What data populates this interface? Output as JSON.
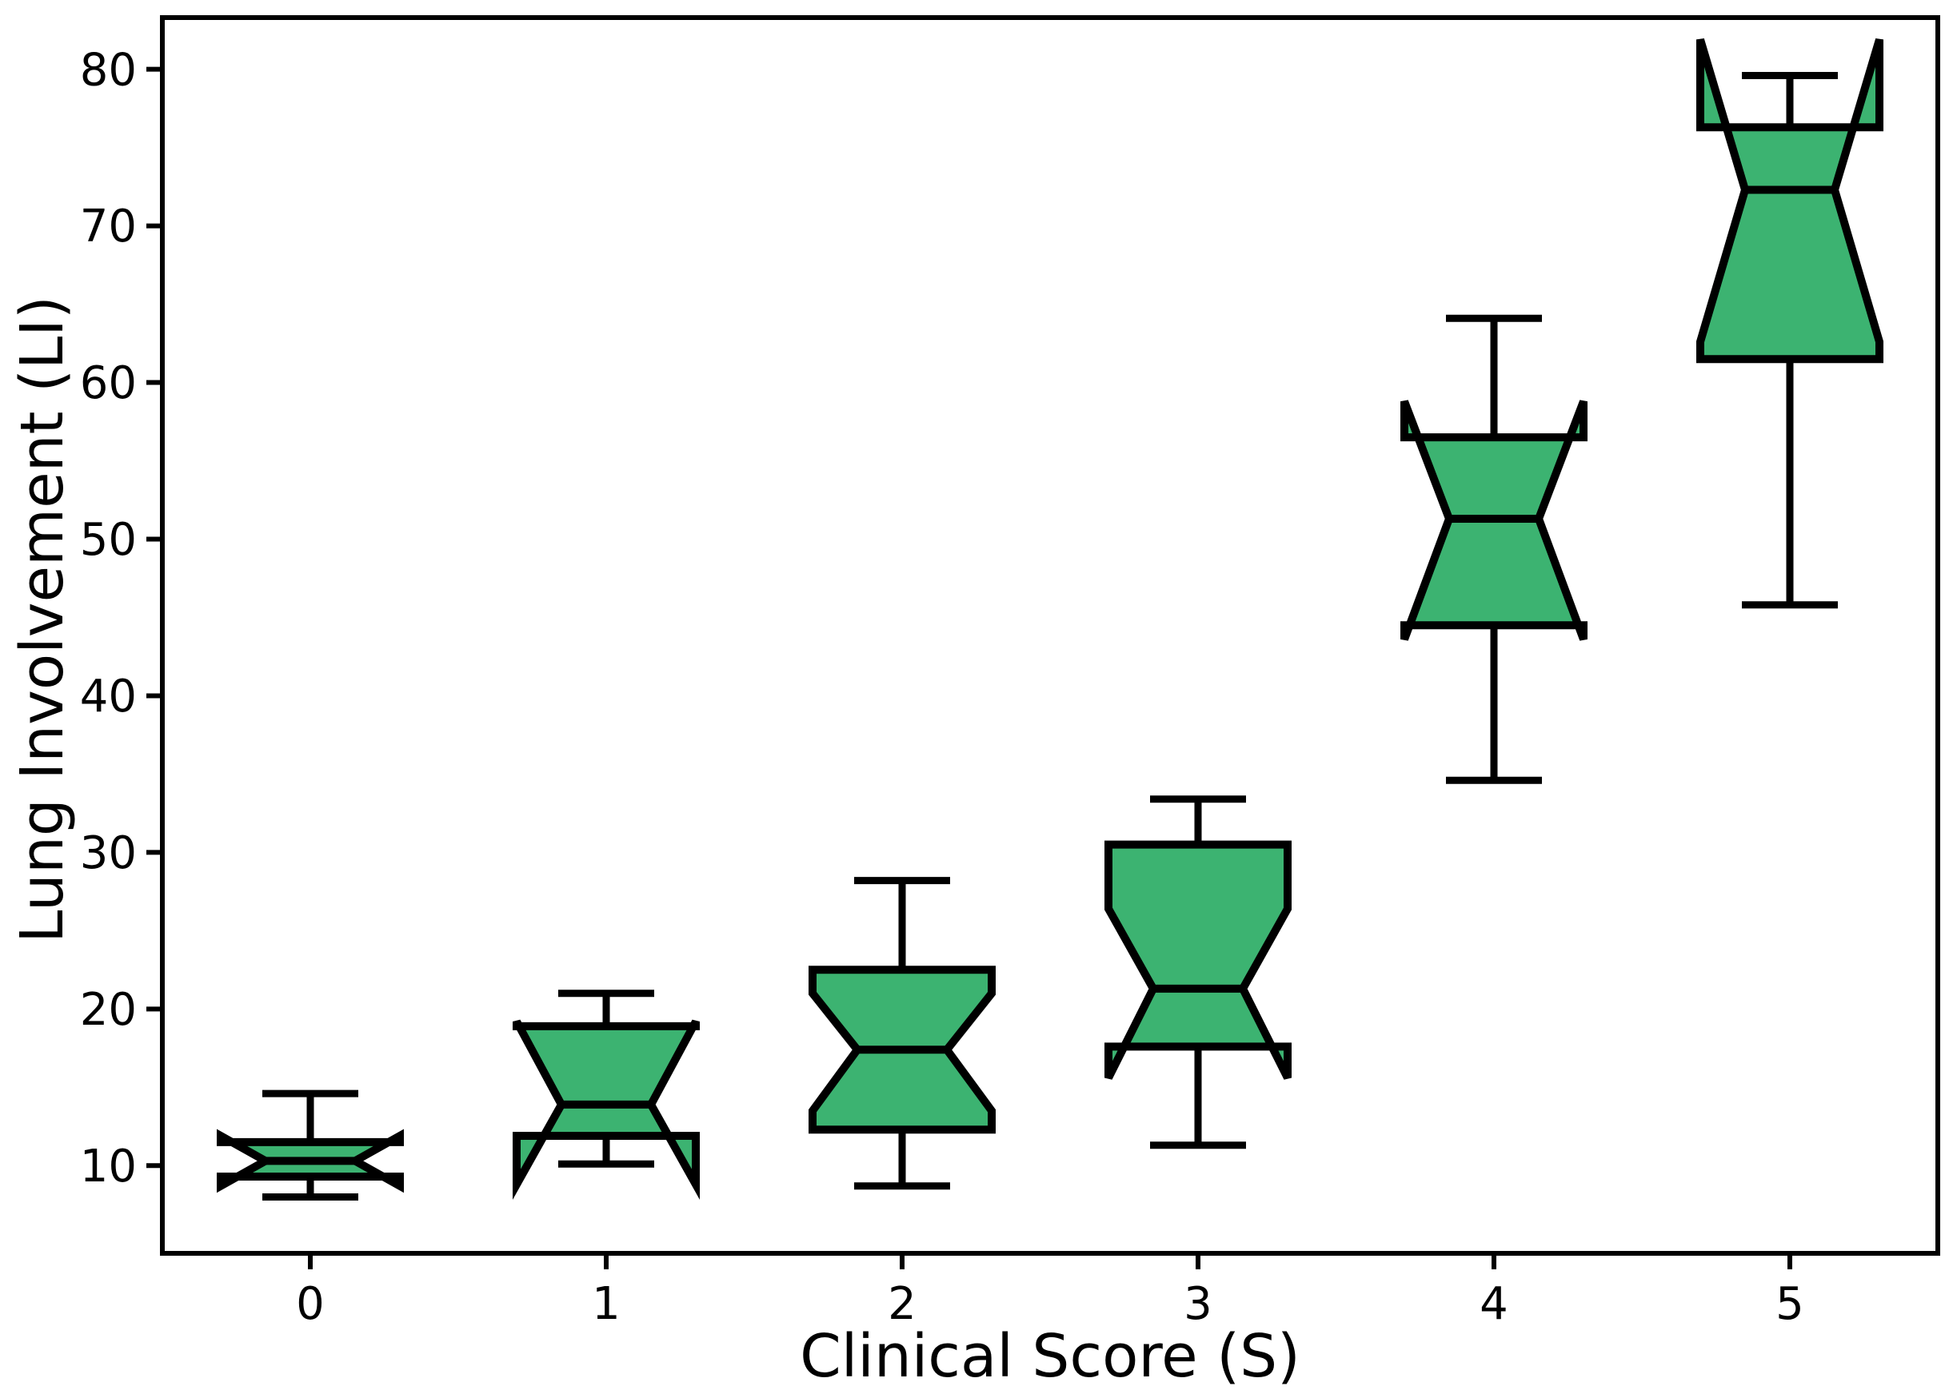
{
  "figure": {
    "background": "#ffffff"
  },
  "chart_data": {
    "type": "box",
    "notched": true,
    "title": "",
    "xlabel": "Clinical Score (S)",
    "ylabel": "Lung Involvement (LI)",
    "categories": [
      "0",
      "1",
      "2",
      "3",
      "4",
      "5"
    ],
    "yticks": [
      "10",
      "20",
      "30",
      "40",
      "50",
      "60",
      "70",
      "80"
    ],
    "xlim": [
      -0.5,
      5.5
    ],
    "ylim": [
      4.4,
      83.3
    ],
    "grid": false,
    "legend": "none",
    "colors": {
      "box_fill": "#3CB371",
      "box_edge": "#000000",
      "whisker": "#000000",
      "median": "#000000",
      "axis": "#000000",
      "background": "#ffffff"
    },
    "series": [
      {
        "category": "0",
        "whislo": 8.0,
        "q1": 9.3,
        "med": 10.3,
        "q3": 11.5,
        "whishi": 14.6,
        "notch_lo": 8.7,
        "notch_hi": 11.9
      },
      {
        "category": "1",
        "whislo": 10.1,
        "q1": 11.9,
        "med": 13.9,
        "q3": 18.9,
        "whishi": 21.0,
        "notch_lo": 8.8,
        "notch_hi": 19.2
      },
      {
        "category": "2",
        "whislo": 8.7,
        "q1": 12.3,
        "med": 17.4,
        "q3": 22.5,
        "whishi": 28.2,
        "notch_lo": 13.5,
        "notch_hi": 21.0
      },
      {
        "category": "3",
        "whislo": 11.3,
        "q1": 17.6,
        "med": 21.3,
        "q3": 30.5,
        "whishi": 33.4,
        "notch_lo": 15.6,
        "notch_hi": 26.4
      },
      {
        "category": "4",
        "whislo": 34.6,
        "q1": 44.5,
        "med": 51.3,
        "q3": 56.5,
        "whishi": 64.1,
        "notch_lo": 43.6,
        "notch_hi": 58.8
      },
      {
        "category": "5",
        "whislo": 45.8,
        "q1": 61.5,
        "med": 72.3,
        "q3": 76.3,
        "whishi": 79.6,
        "notch_lo": 62.6,
        "notch_hi": 81.9
      }
    ]
  }
}
